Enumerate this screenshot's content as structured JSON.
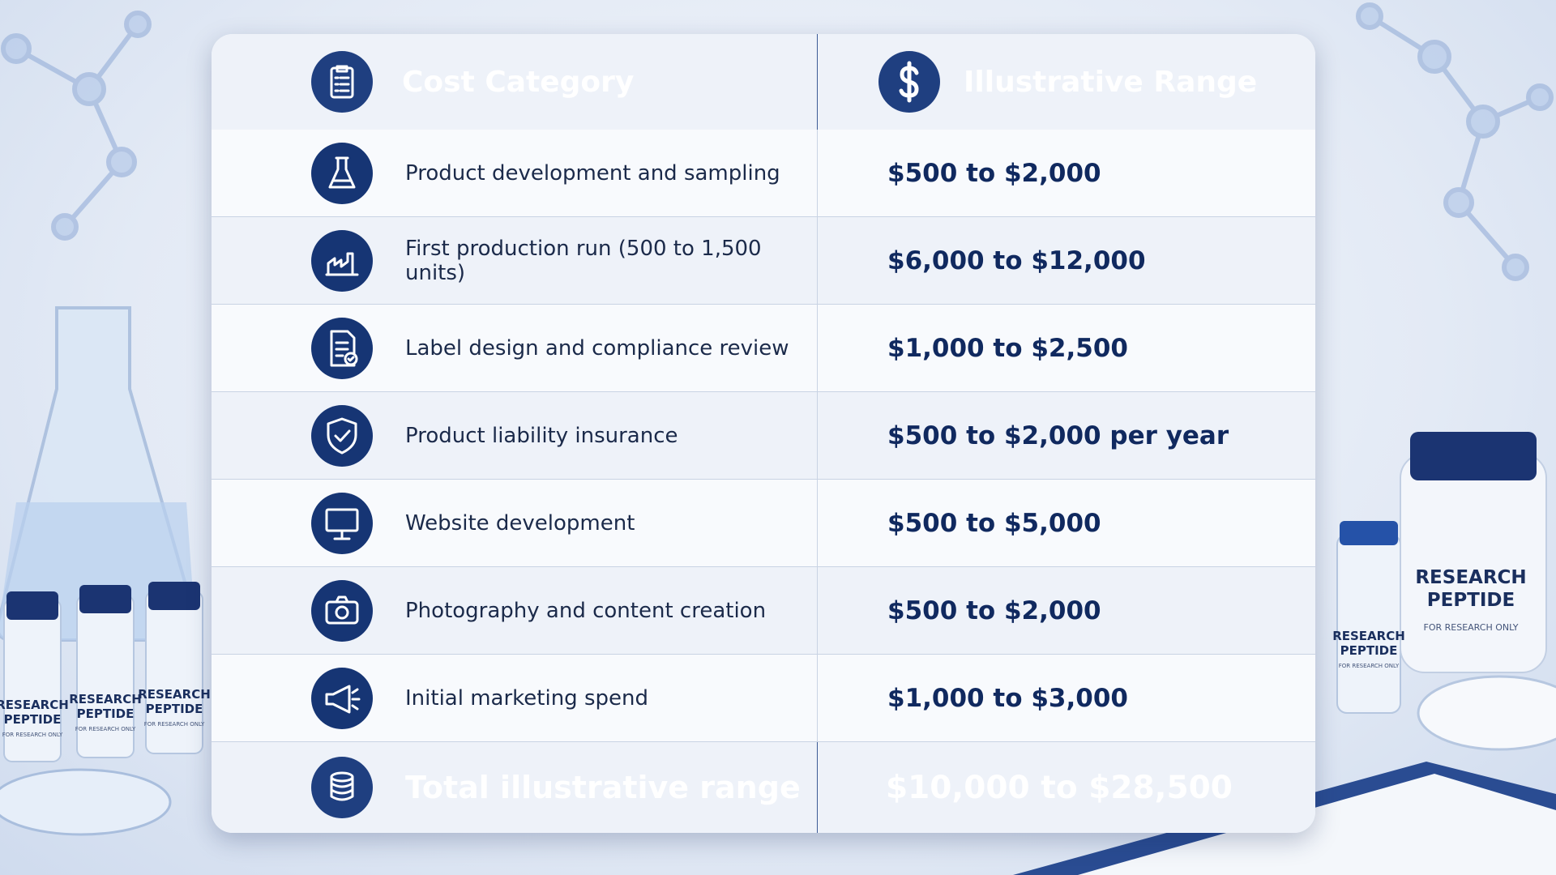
{
  "table": {
    "header": [
      "Cost Category",
      "Illustrative Range"
    ],
    "rows": [
      [
        "Product development and sampling",
        "$500 to $2,000"
      ],
      [
        "First production run (500 to 1,500 units)",
        "$6,000 to $12,000"
      ],
      [
        "Label design and compliance review",
        "$1,000 to $2,500"
      ],
      [
        "Product liability insurance",
        "$500 to $2,000 per year"
      ],
      [
        "Website development",
        "$500 to $5,000"
      ],
      [
        "Photography and content creation",
        "$500 to $2,000"
      ],
      [
        "Initial marketing spend",
        "$1,000 to $3,000"
      ]
    ],
    "total": [
      "Total illustrative range",
      "$10,000 to $28,500"
    ]
  },
  "decor": {
    "vial_label_1": "RESEARCH",
    "vial_label_2": "PEPTIDE",
    "vial_note": "FOR RESEARCH ONLY"
  }
}
